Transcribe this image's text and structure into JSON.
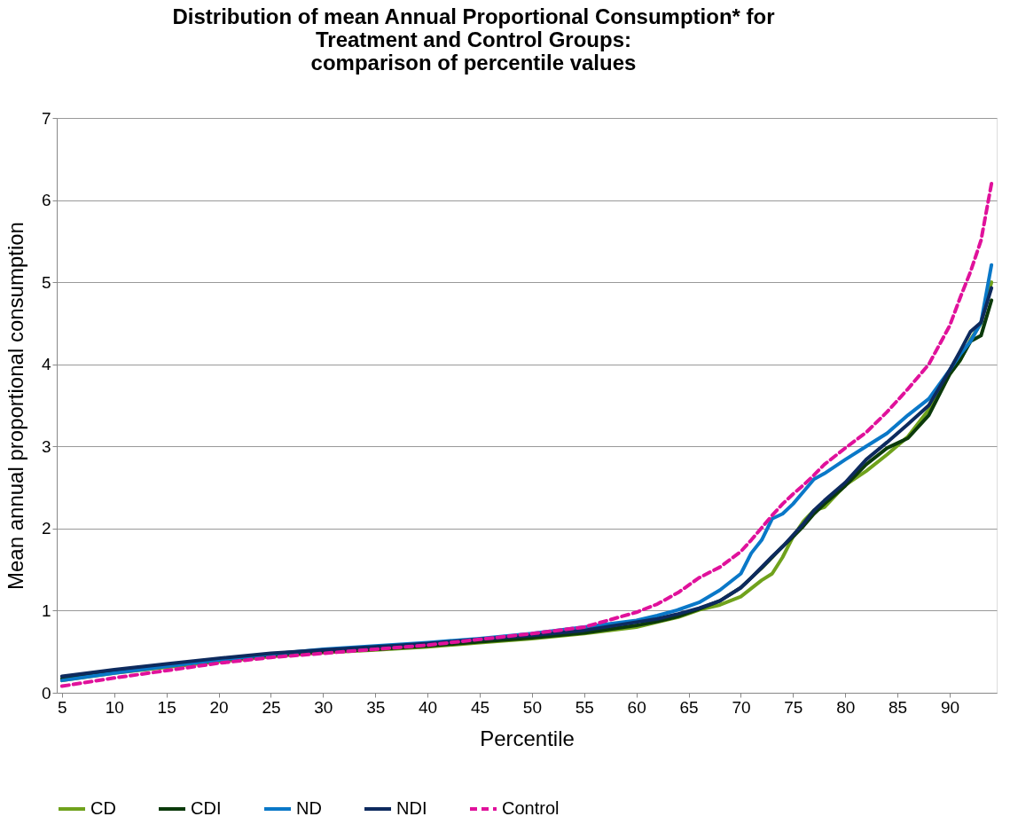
{
  "chart_data": {
    "type": "line",
    "title": "Distribution of mean Annual Proportional Consumption* for\nTreatment and Control Groups:\ncomparison of percentile values",
    "xlabel": "Percentile",
    "ylabel": "Mean annual proportional consumption",
    "x": [
      5,
      10,
      15,
      20,
      25,
      30,
      35,
      40,
      45,
      50,
      55,
      60,
      62,
      64,
      66,
      68,
      70,
      71,
      72,
      73,
      74,
      75,
      76,
      77,
      78,
      80,
      82,
      84,
      86,
      88,
      90,
      91,
      92,
      93,
      94
    ],
    "xlim": [
      4.5,
      94.5
    ],
    "xticks": [
      5,
      10,
      15,
      20,
      25,
      30,
      35,
      40,
      45,
      50,
      55,
      60,
      65,
      70,
      75,
      80,
      85,
      90
    ],
    "ylim": [
      0,
      7
    ],
    "yticks": [
      0,
      1,
      2,
      3,
      4,
      5,
      6,
      7
    ],
    "grid": "y",
    "legend": "bottom",
    "marker": "none",
    "series": [
      {
        "name": "CD",
        "color": "#70a21c",
        "line_style": "solid",
        "values": [
          0.15,
          0.24,
          0.31,
          0.38,
          0.44,
          0.49,
          0.52,
          0.56,
          0.61,
          0.66,
          0.72,
          0.8,
          0.86,
          0.92,
          1.01,
          1.07,
          1.17,
          1.27,
          1.37,
          1.45,
          1.65,
          1.9,
          2.09,
          2.22,
          2.26,
          2.53,
          2.7,
          2.9,
          3.12,
          3.45,
          3.88,
          4.05,
          4.3,
          4.5,
          5.0
        ]
      },
      {
        "name": "CDI",
        "color": "#0b3a0b",
        "line_style": "solid",
        "values": [
          0.17,
          0.26,
          0.33,
          0.4,
          0.46,
          0.5,
          0.53,
          0.57,
          0.62,
          0.67,
          0.73,
          0.82,
          0.87,
          0.93,
          1.02,
          1.12,
          1.28,
          1.4,
          1.52,
          1.65,
          1.78,
          1.9,
          2.03,
          2.18,
          2.3,
          2.52,
          2.78,
          2.98,
          3.1,
          3.38,
          3.88,
          4.05,
          4.28,
          4.35,
          4.78
        ]
      },
      {
        "name": "ND",
        "color": "#0a78c8",
        "line_style": "solid",
        "values": [
          0.15,
          0.24,
          0.32,
          0.4,
          0.47,
          0.53,
          0.57,
          0.61,
          0.66,
          0.72,
          0.8,
          0.88,
          0.94,
          1.01,
          1.1,
          1.25,
          1.45,
          1.7,
          1.86,
          2.12,
          2.18,
          2.3,
          2.45,
          2.6,
          2.67,
          2.84,
          3.0,
          3.16,
          3.38,
          3.58,
          3.93,
          4.12,
          4.28,
          4.51,
          5.21
        ]
      },
      {
        "name": "NDI",
        "color": "#0d2a5e",
        "line_style": "solid",
        "values": [
          0.2,
          0.28,
          0.35,
          0.42,
          0.48,
          0.52,
          0.56,
          0.6,
          0.65,
          0.7,
          0.76,
          0.86,
          0.9,
          0.96,
          1.03,
          1.12,
          1.28,
          1.4,
          1.53,
          1.66,
          1.78,
          1.92,
          2.06,
          2.22,
          2.34,
          2.56,
          2.84,
          3.05,
          3.27,
          3.5,
          3.93,
          4.16,
          4.4,
          4.51,
          4.93
        ]
      },
      {
        "name": "Control",
        "color": "#e0119b",
        "line_style": "dashed",
        "values": [
          0.08,
          0.18,
          0.27,
          0.36,
          0.43,
          0.48,
          0.53,
          0.58,
          0.65,
          0.72,
          0.8,
          0.98,
          1.08,
          1.22,
          1.4,
          1.53,
          1.72,
          1.86,
          2.01,
          2.16,
          2.3,
          2.42,
          2.53,
          2.65,
          2.78,
          2.98,
          3.17,
          3.42,
          3.7,
          4.0,
          4.47,
          4.81,
          5.13,
          5.51,
          6.2
        ]
      }
    ]
  }
}
